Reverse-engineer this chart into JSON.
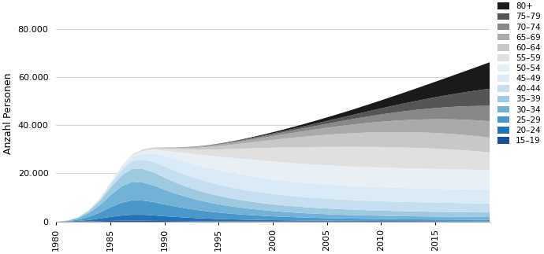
{
  "years": [
    1980,
    1981,
    1982,
    1983,
    1984,
    1985,
    1986,
    1987,
    1988,
    1989,
    1990,
    1991,
    1992,
    1993,
    1994,
    1995,
    1996,
    1997,
    1998,
    1999,
    2000,
    2001,
    2002,
    2003,
    2004,
    2005,
    2006,
    2007,
    2008,
    2009,
    2010,
    2011,
    2012,
    2013,
    2014,
    2015,
    2016,
    2017,
    2018,
    2019,
    2020
  ],
  "age_groups": [
    "15–19",
    "20–24",
    "25–29",
    "30–34",
    "35–39",
    "40–44",
    "45–49",
    "50–54",
    "55–59",
    "60–64",
    "65–69",
    "70–74",
    "75–79",
    "80+"
  ],
  "colors": [
    "#1a4f9e",
    "#2272b6",
    "#4a97c9",
    "#72b2d7",
    "#9dcae1",
    "#c6dff0",
    "#daeaf6",
    "#e8f0f5",
    "#e0e0e0",
    "#c8c8c8",
    "#aaaaaa",
    "#888888",
    "#555555",
    "#1a1a1a"
  ],
  "data": {
    "15–19": [
      0,
      30,
      80,
      160,
      260,
      360,
      420,
      440,
      420,
      380,
      330,
      280,
      240,
      200,
      170,
      150,
      130,
      120,
      110,
      100,
      95,
      90,
      85,
      80,
      75,
      70,
      65,
      60,
      58,
      55,
      52,
      50,
      48,
      46,
      44,
      43,
      42,
      41,
      40,
      39,
      38
    ],
    "20–24": [
      0,
      80,
      280,
      620,
      1100,
      1700,
      2200,
      2500,
      2500,
      2300,
      2000,
      1750,
      1520,
      1330,
      1160,
      1020,
      900,
      800,
      720,
      650,
      590,
      540,
      500,
      460,
      430,
      400,
      375,
      350,
      330,
      310,
      295,
      280,
      268,
      256,
      244,
      235,
      226,
      218,
      210,
      202,
      195
    ],
    "25–29": [
      0,
      150,
      520,
      1300,
      2500,
      4000,
      5300,
      6000,
      5900,
      5500,
      4900,
      4300,
      3800,
      3350,
      3000,
      2680,
      2400,
      2160,
      1950,
      1760,
      1600,
      1460,
      1340,
      1230,
      1140,
      1060,
      990,
      930,
      880,
      835,
      795,
      760,
      730,
      705,
      682,
      662,
      644,
      628,
      614,
      601,
      589
    ],
    "30–34": [
      0,
      160,
      600,
      1600,
      3100,
      5100,
      6800,
      7700,
      7500,
      6900,
      6100,
      5400,
      4800,
      4250,
      3800,
      3420,
      3100,
      2820,
      2580,
      2380,
      2200,
      2050,
      1920,
      1810,
      1720,
      1640,
      1570,
      1510,
      1460,
      1415,
      1375,
      1340,
      1310,
      1283,
      1258,
      1236,
      1216,
      1197,
      1180,
      1163,
      1148
    ],
    "35–39": [
      0,
      80,
      300,
      820,
      1700,
      3100,
      4500,
      5500,
      5600,
      5400,
      5000,
      4600,
      4250,
      3950,
      3700,
      3490,
      3310,
      3150,
      3010,
      2880,
      2770,
      2670,
      2580,
      2500,
      2430,
      2370,
      2315,
      2265,
      2220,
      2180,
      2143,
      2110,
      2080,
      2053,
      2028,
      2006,
      1985,
      1966,
      1948,
      1931,
      1915
    ],
    "40–44": [
      0,
      35,
      115,
      300,
      650,
      1300,
      2200,
      3200,
      3900,
      4400,
      4700,
      4800,
      4800,
      4770,
      4720,
      4660,
      4590,
      4520,
      4450,
      4380,
      4310,
      4250,
      4190,
      4140,
      4090,
      4050,
      4010,
      3975,
      3945,
      3918,
      3893,
      3871,
      3851,
      3833,
      3816,
      3801,
      3787,
      3774,
      3762,
      3751,
      3740
    ],
    "45–49": [
      0,
      12,
      40,
      110,
      250,
      520,
      980,
      1700,
      2600,
      3500,
      4300,
      4950,
      5400,
      5700,
      5900,
      6000,
      6060,
      6090,
      6100,
      6090,
      6070,
      6040,
      6010,
      5980,
      5950,
      5925,
      5900,
      5878,
      5858,
      5840,
      5824,
      5810,
      5797,
      5786,
      5776,
      5768,
      5760,
      5753,
      5747,
      5742,
      5737
    ],
    "50–54": [
      0,
      4,
      13,
      36,
      90,
      185,
      360,
      640,
      1050,
      1580,
      2250,
      3000,
      3750,
      4450,
      5100,
      5680,
      6180,
      6600,
      6950,
      7230,
      7450,
      7620,
      7750,
      7850,
      7930,
      7995,
      8048,
      8092,
      8128,
      8157,
      8180,
      8198,
      8211,
      8219,
      8224,
      8225,
      8223,
      8218,
      8210,
      8200,
      8188
    ],
    "55–59": [
      0,
      1,
      4,
      12,
      30,
      62,
      120,
      215,
      360,
      560,
      830,
      1160,
      1550,
      2000,
      2500,
      3040,
      3600,
      4160,
      4720,
      5260,
      5760,
      6220,
      6640,
      7020,
      7360,
      7660,
      7920,
      8140,
      8320,
      8460,
      8560,
      8620,
      8640,
      8620,
      8560,
      8460,
      8320,
      8140,
      7920,
      7660,
      7360
    ],
    "60–64": [
      0,
      0,
      1,
      4,
      10,
      20,
      40,
      72,
      122,
      196,
      300,
      435,
      610,
      825,
      1080,
      1375,
      1705,
      2065,
      2445,
      2840,
      3240,
      3640,
      4030,
      4400,
      4740,
      5050,
      5330,
      5580,
      5800,
      5990,
      6150,
      6280,
      6380,
      6450,
      6490,
      6500,
      6480,
      6430,
      6350,
      6240,
      6100
    ],
    "65–69": [
      0,
      0,
      0,
      1,
      3,
      7,
      14,
      25,
      42,
      68,
      107,
      159,
      230,
      320,
      432,
      566,
      722,
      900,
      1098,
      1315,
      1550,
      1800,
      2063,
      2336,
      2618,
      2906,
      3198,
      3492,
      3787,
      4080,
      4370,
      4656,
      4936,
      5208,
      5472,
      5726,
      5970,
      6202,
      6422,
      6630,
      6826
    ],
    "70–74": [
      0,
      0,
      0,
      0,
      1,
      2,
      5,
      9,
      15,
      24,
      39,
      59,
      87,
      123,
      170,
      228,
      300,
      386,
      488,
      607,
      744,
      899,
      1073,
      1265,
      1474,
      1700,
      1942,
      2198,
      2468,
      2751,
      3047,
      3354,
      3671,
      3996,
      4328,
      4666,
      5008,
      5354,
      5702,
      6051,
      6400
    ],
    "75–79": [
      0,
      0,
      0,
      0,
      0,
      1,
      2,
      3,
      6,
      10,
      16,
      26,
      39,
      57,
      81,
      113,
      153,
      204,
      267,
      343,
      435,
      544,
      672,
      820,
      990,
      1183,
      1400,
      1642,
      1909,
      2202,
      2521,
      2866,
      3237,
      3634,
      4057,
      4505,
      4978,
      5476,
      5998,
      6544,
      7114
    ],
    "80+": [
      0,
      0,
      0,
      0,
      0,
      0,
      1,
      2,
      4,
      7,
      11,
      18,
      29,
      45,
      68,
      100,
      143,
      200,
      273,
      364,
      476,
      612,
      775,
      968,
      1193,
      1453,
      1750,
      2087,
      2466,
      2889,
      3358,
      3875,
      4442,
      5061,
      5734,
      6462,
      7248,
      8094,
      9002,
      9974,
      11012
    ]
  },
  "ylabel": "Anzahl Personen",
  "ylim": [
    0,
    90000
  ],
  "yticks": [
    0,
    20000,
    40000,
    60000,
    80000
  ],
  "xlim": [
    1980,
    2020
  ],
  "xticks": [
    1980,
    1985,
    1990,
    1995,
    2000,
    2005,
    2010,
    2015
  ],
  "bg_color": "#ffffff",
  "grid_color": "#cccccc"
}
